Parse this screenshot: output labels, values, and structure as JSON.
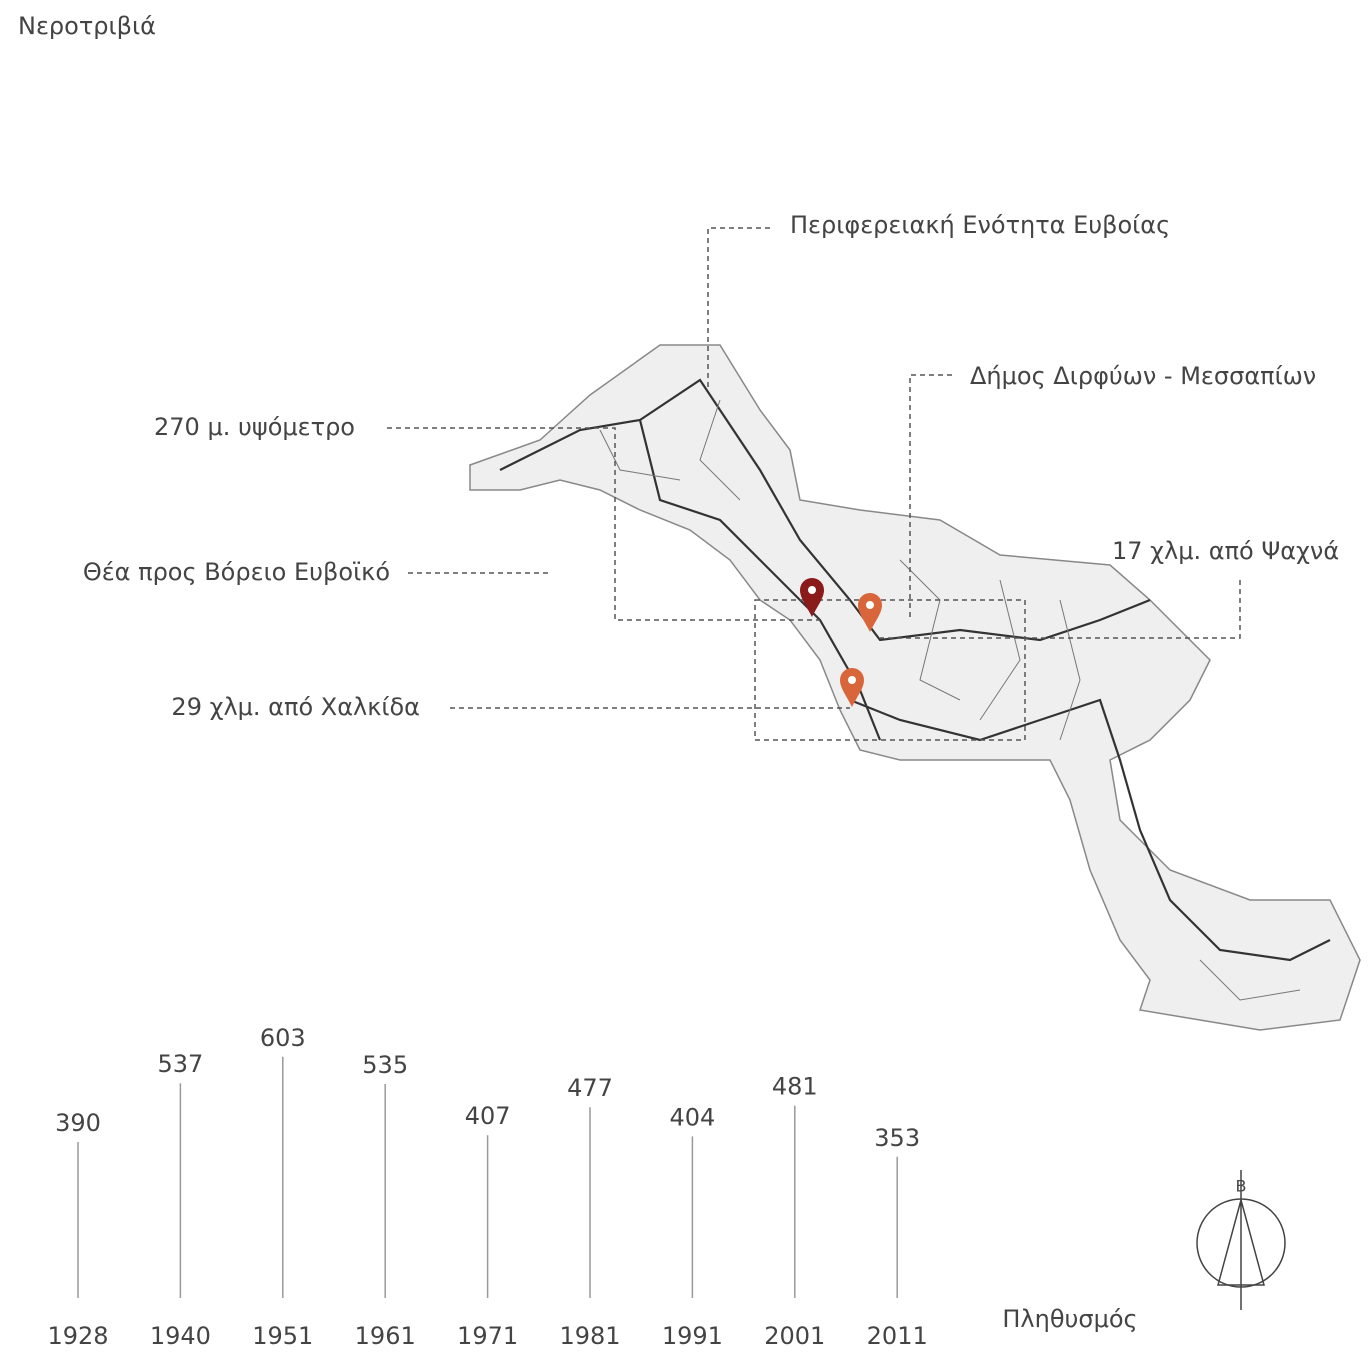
{
  "title": "Νεροτριβιά",
  "annotations": [
    "Περιφερειακή Ενότητα Ευβοίας",
    "Δήμος Διρφύων - Μεσσαπίων",
    "270 μ. υψόμετρο",
    "Θέα προς Βόρειο Ευβοϊκό",
    "17 χλμ. από Ψαχνά",
    "29 χλμ. από Χαλκίδα"
  ],
  "compass": "Β",
  "chart_data": {
    "type": "stem",
    "x_label": "Πληθυσμός",
    "categories": [
      "1928",
      "1940",
      "1951",
      "1961",
      "1971",
      "1981",
      "1991",
      "2001",
      "2011"
    ],
    "values": [
      390,
      537,
      603,
      535,
      407,
      477,
      404,
      481,
      353
    ],
    "color": "#999999",
    "ylim": [
      0,
      700
    ]
  }
}
